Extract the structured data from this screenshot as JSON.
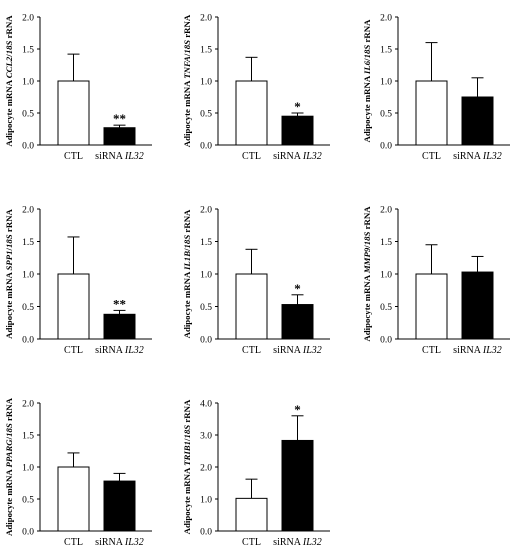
{
  "colors": {
    "axis": "#000000",
    "control_bar": "#ffffff",
    "treatment_bar": "#000000"
  },
  "chart_data": [
    {
      "type": "bar",
      "gene": "CCL2",
      "ylabel_parts": [
        "Adipocyte mRNA ",
        "CCL2",
        "/",
        "18S",
        " rRNA"
      ],
      "categories": [
        "CTL",
        "siRNA IL32"
      ],
      "values": [
        1.0,
        0.27
      ],
      "errors": [
        0.42,
        0.04
      ],
      "significance": [
        "",
        "**"
      ],
      "ylim": [
        0,
        2.0
      ],
      "yticks": [
        "0.0",
        "0.5",
        "1.0",
        "1.5",
        "2.0"
      ]
    },
    {
      "type": "bar",
      "gene": "TNFA",
      "ylabel_parts": [
        "Adipocyte mRNA ",
        "TNFA",
        "/",
        "18S",
        " rRNA"
      ],
      "categories": [
        "CTL",
        "siRNA IL32"
      ],
      "values": [
        1.0,
        0.45
      ],
      "errors": [
        0.37,
        0.05
      ],
      "significance": [
        "",
        "*"
      ],
      "ylim": [
        0,
        2.0
      ],
      "yticks": [
        "0.0",
        "0.5",
        "1.0",
        "1.5",
        "2.0"
      ]
    },
    {
      "type": "bar",
      "gene": "IL6",
      "ylabel_parts": [
        "Adipocyte mRNA ",
        "IL6",
        "/",
        "18S",
        " rRNA"
      ],
      "categories": [
        "CTL",
        "siRNA IL32"
      ],
      "values": [
        1.0,
        0.75
      ],
      "errors": [
        0.6,
        0.3
      ],
      "significance": [
        "",
        ""
      ],
      "ylim": [
        0,
        2.0
      ],
      "yticks": [
        "0.0",
        "0.5",
        "1.0",
        "1.5",
        "2.0"
      ]
    },
    {
      "type": "bar",
      "gene": "SPP1",
      "ylabel_parts": [
        "Adipocyte mRNA ",
        "SPP1",
        "/",
        "18S",
        " rRNA"
      ],
      "categories": [
        "CTL",
        "siRNA IL32"
      ],
      "values": [
        1.0,
        0.38
      ],
      "errors": [
        0.57,
        0.06
      ],
      "significance": [
        "",
        "**"
      ],
      "ylim": [
        0,
        2.0
      ],
      "yticks": [
        "0.0",
        "0.5",
        "1.0",
        "1.5",
        "2.0"
      ]
    },
    {
      "type": "bar",
      "gene": "IL1B",
      "ylabel_parts": [
        "Adipocyte mRNA ",
        "IL1B",
        "/",
        "18S",
        " rRNA"
      ],
      "categories": [
        "CTL",
        "siRNA IL32"
      ],
      "values": [
        1.0,
        0.53
      ],
      "errors": [
        0.38,
        0.15
      ],
      "significance": [
        "",
        "*"
      ],
      "ylim": [
        0,
        2.0
      ],
      "yticks": [
        "0.0",
        "0.5",
        "1.0",
        "1.5",
        "2.0"
      ]
    },
    {
      "type": "bar",
      "gene": "MMP9",
      "ylabel_parts": [
        "Adipocyte mRNA ",
        "MMP9",
        "/",
        "18S",
        " rRNA"
      ],
      "categories": [
        "CTL",
        "siRNA IL32"
      ],
      "values": [
        1.0,
        1.03
      ],
      "errors": [
        0.45,
        0.24
      ],
      "significance": [
        "",
        ""
      ],
      "ylim": [
        0,
        2.0
      ],
      "yticks": [
        "0.0",
        "0.5",
        "1.0",
        "1.5",
        "2.0"
      ]
    },
    {
      "type": "bar",
      "gene": "PPARG",
      "ylabel_parts": [
        "Adipocyte mRNA ",
        "PPARG",
        "/",
        "18S",
        " rRNA"
      ],
      "categories": [
        "CTL",
        "siRNA IL32"
      ],
      "values": [
        1.0,
        0.78
      ],
      "errors": [
        0.22,
        0.12
      ],
      "significance": [
        "",
        ""
      ],
      "ylim": [
        0,
        2.0
      ],
      "yticks": [
        "0.0",
        "0.5",
        "1.0",
        "1.5",
        "2.0"
      ]
    },
    {
      "type": "bar",
      "gene": "TRIB1",
      "ylabel_parts": [
        "Adipocyte mRNA ",
        "TRIB1",
        "/",
        "18S",
        " rRNA"
      ],
      "categories": [
        "CTL",
        "siRNA IL32"
      ],
      "values": [
        1.02,
        2.83
      ],
      "errors": [
        0.6,
        0.77
      ],
      "significance": [
        "",
        "*"
      ],
      "ylim": [
        0,
        4.0
      ],
      "yticks": [
        "0.0",
        "1.0",
        "2.0",
        "3.0",
        "4.0"
      ]
    }
  ]
}
